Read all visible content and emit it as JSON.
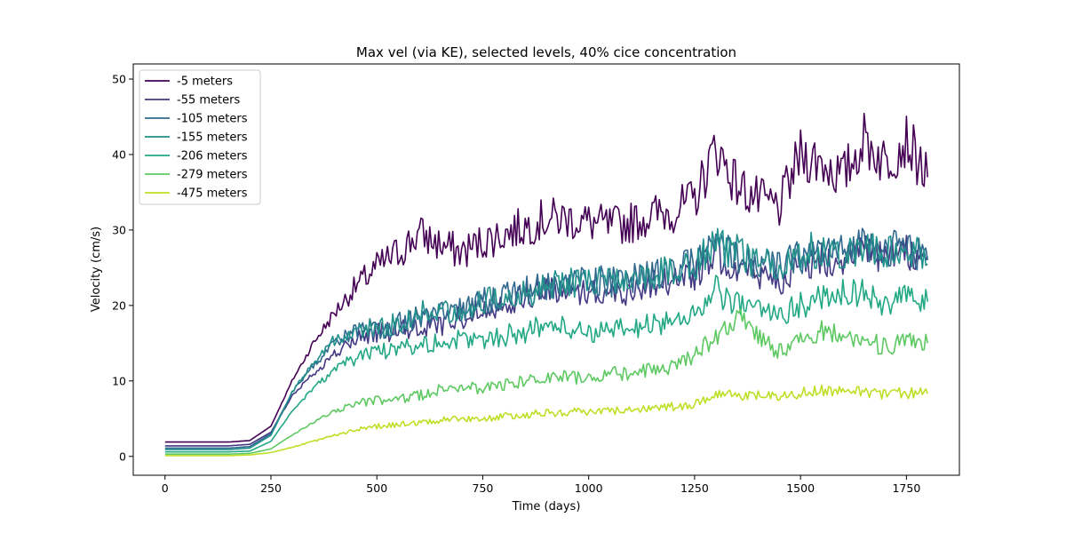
{
  "chart_data": {
    "type": "line",
    "title": "Max vel (via KE), selected levels, 40% cice concentration",
    "xlabel": "Time (days)",
    "ylabel": "Velocity (cm/s)",
    "xlim": [
      -75,
      1875
    ],
    "ylim": [
      -2.5,
      52
    ],
    "xticks": [
      0,
      250,
      500,
      750,
      1000,
      1250,
      1500,
      1750
    ],
    "yticks": [
      0,
      10,
      20,
      30,
      40,
      50
    ],
    "grid": false,
    "legend_position": "top-left",
    "x": [
      0,
      50,
      100,
      150,
      200,
      250,
      300,
      350,
      400,
      450,
      500,
      550,
      600,
      650,
      700,
      750,
      800,
      850,
      900,
      950,
      1000,
      1050,
      1100,
      1150,
      1200,
      1250,
      1300,
      1350,
      1400,
      1450,
      1500,
      1550,
      1600,
      1650,
      1700,
      1750,
      1800
    ],
    "series": [
      {
        "name": "-5 meters",
        "color": "#440154",
        "values": [
          1.9,
          1.9,
          1.9,
          1.9,
          2.1,
          4.0,
          10.0,
          15.0,
          19.0,
          22.5,
          25.0,
          27.0,
          29.5,
          28.0,
          27.0,
          28.5,
          29.5,
          30.5,
          31.5,
          31.5,
          31.0,
          30.5,
          31.0,
          32.0,
          32.5,
          34.0,
          41.0,
          36.0,
          34.0,
          33.0,
          40.0,
          39.0,
          37.0,
          42.0,
          39.0,
          42.0,
          37.0
        ]
      },
      {
        "name": "-55 meters",
        "color": "#443983",
        "values": [
          1.4,
          1.4,
          1.4,
          1.4,
          1.6,
          3.2,
          8.0,
          11.0,
          13.5,
          15.5,
          16.5,
          16.5,
          17.0,
          17.5,
          18.5,
          19.5,
          20.5,
          21.0,
          22.0,
          22.0,
          22.0,
          21.5,
          22.0,
          23.0,
          23.5,
          24.0,
          27.0,
          25.0,
          24.0,
          23.5,
          25.0,
          26.0,
          26.5,
          27.0,
          26.0,
          27.0,
          26.5
        ]
      },
      {
        "name": "-105 meters",
        "color": "#31688e",
        "values": [
          1.1,
          1.1,
          1.1,
          1.1,
          1.3,
          3.0,
          8.5,
          12.0,
          15.0,
          16.5,
          17.0,
          17.5,
          18.5,
          19.0,
          19.5,
          20.5,
          21.5,
          22.0,
          22.5,
          23.0,
          23.5,
          23.0,
          23.5,
          24.0,
          24.5,
          25.5,
          28.0,
          26.5,
          25.5,
          25.0,
          26.5,
          27.5,
          27.0,
          28.5,
          27.5,
          28.0,
          26.0
        ]
      },
      {
        "name": "-155 meters",
        "color": "#21918c",
        "values": [
          0.9,
          0.9,
          0.9,
          0.9,
          1.1,
          2.8,
          8.5,
          12.5,
          15.5,
          16.5,
          17.0,
          17.5,
          19.0,
          19.5,
          19.5,
          20.5,
          21.5,
          21.5,
          22.5,
          23.0,
          23.5,
          23.0,
          23.5,
          24.0,
          24.5,
          25.5,
          28.0,
          27.0,
          25.5,
          25.0,
          27.0,
          27.5,
          27.0,
          28.0,
          27.0,
          28.0,
          25.5
        ]
      },
      {
        "name": "-206 meters",
        "color": "#22a884",
        "values": [
          0.6,
          0.6,
          0.6,
          0.6,
          0.7,
          2.0,
          6.0,
          9.0,
          11.5,
          13.0,
          14.0,
          14.5,
          15.0,
          15.0,
          15.5,
          15.5,
          16.0,
          16.5,
          17.5,
          17.0,
          16.5,
          16.5,
          17.0,
          17.5,
          18.0,
          19.0,
          22.0,
          20.0,
          19.5,
          19.0,
          20.0,
          21.0,
          22.0,
          21.5,
          20.0,
          21.0,
          20.5
        ]
      },
      {
        "name": "-279 meters",
        "color": "#5ec962",
        "values": [
          0.3,
          0.3,
          0.3,
          0.3,
          0.4,
          1.0,
          2.8,
          4.5,
          6.0,
          7.0,
          7.5,
          7.5,
          8.0,
          9.0,
          9.0,
          9.0,
          9.5,
          10.0,
          10.5,
          10.5,
          10.5,
          11.0,
          11.0,
          11.5,
          12.0,
          13.5,
          16.0,
          18.5,
          16.0,
          14.0,
          15.5,
          16.5,
          16.0,
          15.5,
          14.5,
          15.0,
          15.0
        ]
      },
      {
        "name": "-475 meters",
        "color": "#bddf26",
        "values": [
          0.1,
          0.1,
          0.1,
          0.1,
          0.2,
          0.5,
          1.2,
          2.0,
          2.8,
          3.5,
          4.0,
          4.2,
          4.5,
          4.8,
          5.0,
          5.0,
          5.3,
          5.5,
          5.8,
          5.8,
          6.0,
          6.0,
          6.2,
          6.5,
          6.6,
          6.8,
          8.5,
          8.0,
          8.2,
          7.8,
          8.5,
          8.8,
          8.6,
          8.5,
          8.3,
          8.4,
          8.3
        ]
      }
    ]
  }
}
